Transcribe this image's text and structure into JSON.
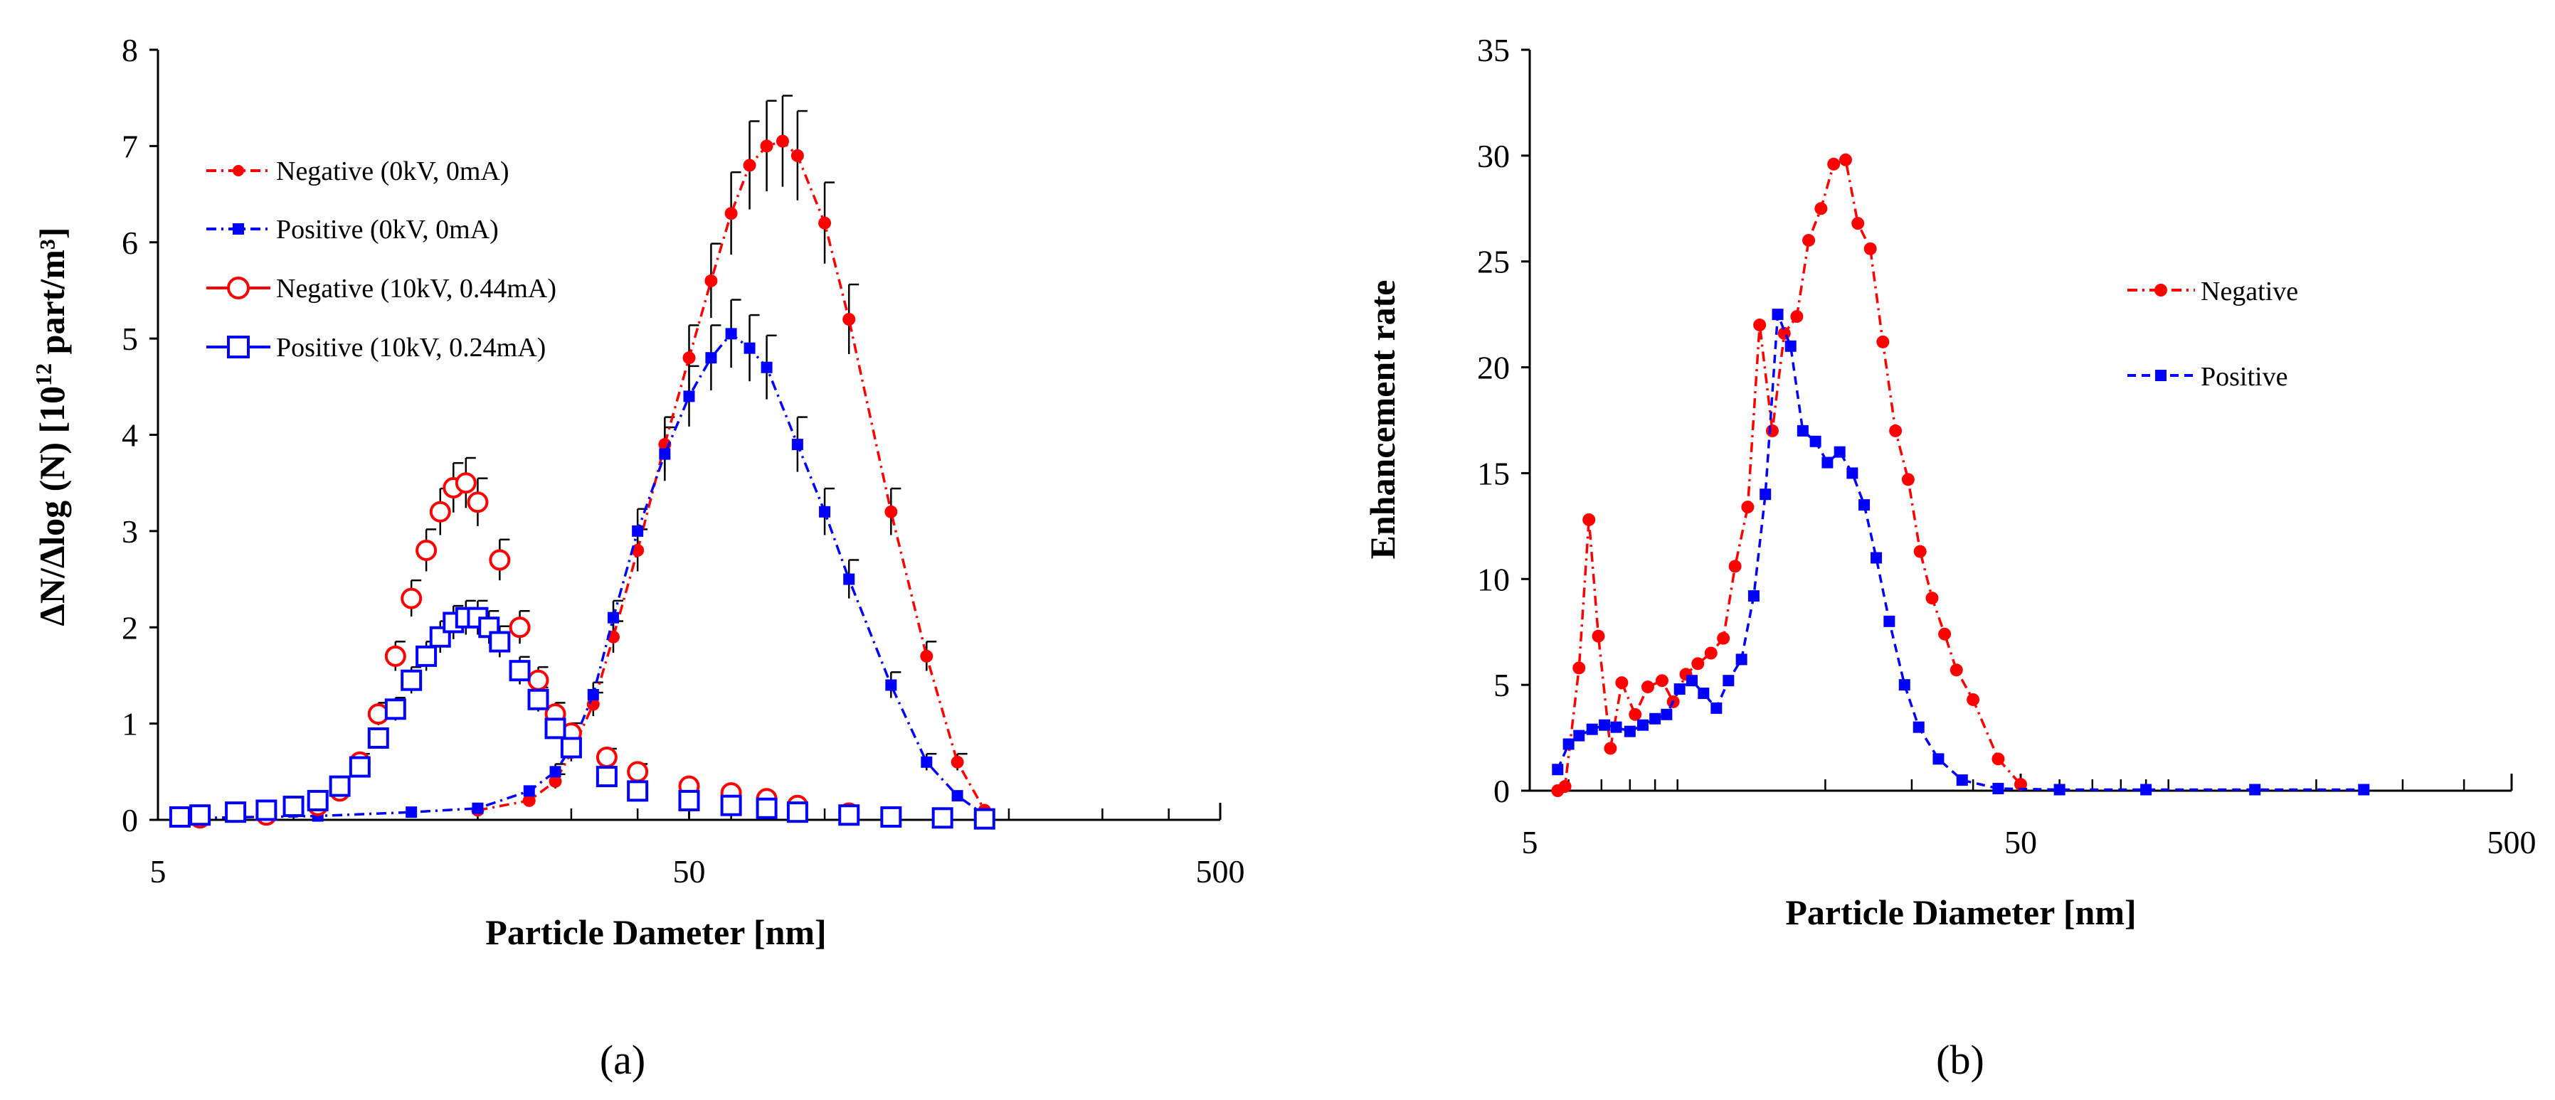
{
  "chart_data": [
    {
      "panel_label": "(a)",
      "type": "scatter",
      "xscale": "log",
      "xlabel": "Particle Dameter [nm]",
      "ylabel": "ΔN/Δlog (N)  [10¹² part/m³]",
      "ylabel_main": "ΔN/Δlog (N)  [10",
      "ylabel_sup": "12",
      "ylabel_end": " part/m³]",
      "xlim": [
        5,
        500
      ],
      "ylim": [
        0,
        8
      ],
      "xticks": [
        "5",
        "50",
        "500"
      ],
      "yticks": [
        "0",
        "1",
        "2",
        "3",
        "4",
        "5",
        "6",
        "7",
        "8"
      ],
      "legend_position": "left",
      "series": [
        {
          "name": "Negative (0kV, 0mA)",
          "color": "#ff0000",
          "marker": "dot",
          "line": "dash-dot",
          "x": [
            20,
            25,
            28,
            30,
            33,
            36,
            40,
            45,
            50,
            55,
            60,
            65,
            70,
            75,
            80,
            90,
            100,
            120,
            140,
            160,
            180
          ],
          "y": [
            0.1,
            0.2,
            0.4,
            0.7,
            1.2,
            1.9,
            2.8,
            3.9,
            4.8,
            5.6,
            6.3,
            6.8,
            7.0,
            7.05,
            6.9,
            6.2,
            5.2,
            3.2,
            1.7,
            0.6,
            0.1
          ]
        },
        {
          "name": "Positive (0kV, 0mA)",
          "color": "#0000ff",
          "marker": "square",
          "line": "dash-dot",
          "x": [
            6,
            10,
            15,
            20,
            25,
            28,
            30,
            33,
            36,
            40,
            45,
            50,
            55,
            60,
            65,
            70,
            80,
            90,
            100,
            120,
            140,
            160,
            180
          ],
          "y": [
            0.02,
            0.04,
            0.08,
            0.12,
            0.3,
            0.5,
            0.75,
            1.3,
            2.1,
            3.0,
            3.8,
            4.4,
            4.8,
            5.05,
            4.9,
            4.7,
            3.9,
            3.2,
            2.5,
            1.4,
            0.6,
            0.25,
            0.05
          ]
        },
        {
          "name": "Negative (10kV, 0.44mA)",
          "color": "#ff0000",
          "marker": "open-circle",
          "line": "none",
          "x": [
            6,
            8,
            10,
            11,
            12,
            13,
            14,
            15,
            16,
            17,
            18,
            19,
            20,
            22,
            24,
            26,
            28,
            30,
            35,
            40,
            50,
            60,
            70,
            80,
            100,
            120
          ],
          "y": [
            0.02,
            0.05,
            0.15,
            0.3,
            0.6,
            1.1,
            1.7,
            2.3,
            2.8,
            3.2,
            3.45,
            3.5,
            3.3,
            2.7,
            2.0,
            1.45,
            1.1,
            0.9,
            0.65,
            0.5,
            0.35,
            0.28,
            0.22,
            0.15,
            0.07,
            0.03
          ]
        },
        {
          "name": "Positive (10kV, 0.24mA)",
          "color": "#0000ff",
          "marker": "open-square",
          "line": "none",
          "x": [
            5.5,
            6,
            7,
            8,
            9,
            10,
            11,
            12,
            13,
            14,
            15,
            16,
            17,
            18,
            19,
            20,
            21,
            22,
            24,
            26,
            28,
            30,
            35,
            40,
            50,
            60,
            70,
            80,
            100,
            120,
            150,
            180
          ],
          "y": [
            0.03,
            0.05,
            0.08,
            0.1,
            0.14,
            0.2,
            0.35,
            0.55,
            0.85,
            1.15,
            1.45,
            1.7,
            1.9,
            2.05,
            2.1,
            2.1,
            2.0,
            1.85,
            1.55,
            1.25,
            0.95,
            0.75,
            0.45,
            0.3,
            0.2,
            0.15,
            0.12,
            0.08,
            0.05,
            0.03,
            0.02,
            0.01
          ]
        }
      ]
    },
    {
      "panel_label": "(b)",
      "type": "line",
      "xscale": "log",
      "xlabel": "Particle Diameter [nm]",
      "ylabel": "Enhancement rate",
      "xlim": [
        5,
        500
      ],
      "ylim": [
        0,
        35
      ],
      "xticks": [
        "5",
        "50",
        "500"
      ],
      "yticks": [
        "0",
        "5",
        "10",
        "15",
        "20",
        "25",
        "30",
        "35"
      ],
      "legend_position": "right",
      "series": [
        {
          "name": "Negative",
          "color": "#ff0000",
          "marker": "dot",
          "line": "dash-dot",
          "x": [
            5.7,
            5.9,
            6.3,
            6.6,
            6.9,
            7.3,
            7.7,
            8.2,
            8.7,
            9.3,
            9.8,
            10.4,
            11.0,
            11.7,
            12.4,
            13.1,
            13.9,
            14.7,
            15.6,
            16.5,
            17.5,
            18.5,
            19.6,
            20.8,
            22.0,
            23.3,
            24.7,
            26.2,
            27.8,
            29.5,
            31.2,
            33,
            35,
            37,
            40,
            45,
            50
          ],
          "y": [
            0,
            0.2,
            5.8,
            12.8,
            7.3,
            2.0,
            5.1,
            3.6,
            4.9,
            5.2,
            4.2,
            5.5,
            6.0,
            6.5,
            7.2,
            10.6,
            13.4,
            22.0,
            17.0,
            21.6,
            22.4,
            26.0,
            27.5,
            29.6,
            29.8,
            26.8,
            25.6,
            21.2,
            17.0,
            14.7,
            11.3,
            9.1,
            7.4,
            5.7,
            4.3,
            1.5,
            0.3
          ]
        },
        {
          "name": "Positive",
          "color": "#0000ff",
          "marker": "square",
          "line": "dash",
          "x": [
            5.7,
            6.0,
            6.3,
            6.7,
            7.1,
            7.5,
            8.0,
            8.5,
            9.0,
            9.5,
            10.1,
            10.7,
            11.3,
            12.0,
            12.7,
            13.5,
            14.3,
            15.1,
            16.0,
            17.0,
            18.0,
            19.1,
            20.2,
            21.4,
            22.7,
            24.0,
            25.4,
            27,
            29,
            31,
            34,
            38,
            45,
            60,
            90,
            150,
            250
          ],
          "y": [
            1.0,
            2.2,
            2.6,
            2.9,
            3.1,
            3.0,
            2.8,
            3.1,
            3.4,
            3.6,
            4.8,
            5.2,
            4.6,
            3.9,
            5.2,
            6.2,
            9.2,
            14.0,
            22.5,
            21.0,
            17.0,
            16.5,
            15.5,
            16.0,
            15.0,
            13.5,
            11.0,
            8.0,
            5.0,
            3.0,
            1.5,
            0.5,
            0.1,
            0.05,
            0.05,
            0.05,
            0.05
          ]
        }
      ]
    }
  ]
}
